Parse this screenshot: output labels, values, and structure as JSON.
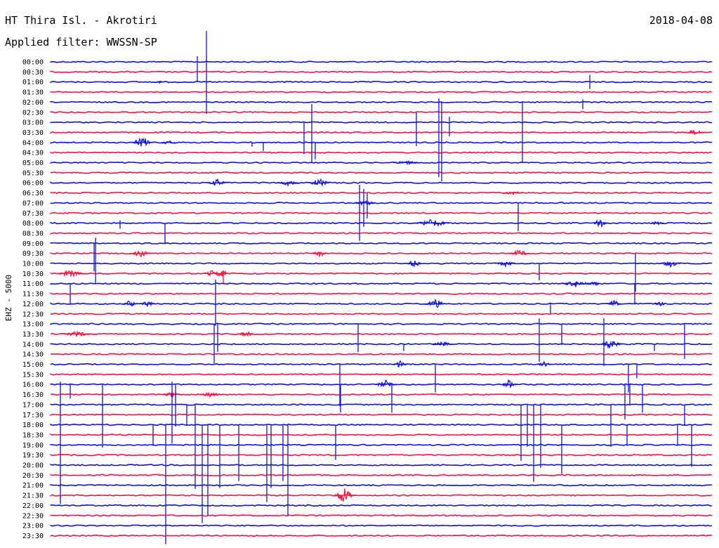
{
  "header": {
    "station": "HT Thira Isl. - Akrotiri",
    "filter": "Applied filter: WWSSN-SP",
    "date": "2018-04-08"
  },
  "colors": {
    "blue": "#1010e0",
    "red": "#ff1040"
  },
  "chart_data": {
    "type": "line",
    "title": "",
    "ylabel": "EHZ - 5000",
    "xlabel": "",
    "series_colors_alternate": [
      "blue",
      "red"
    ],
    "rows": [
      "00:00",
      "00:30",
      "01:00",
      "01:30",
      "02:00",
      "02:30",
      "03:00",
      "03:30",
      "04:00",
      "04:30",
      "05:00",
      "05:30",
      "06:00",
      "06:30",
      "07:00",
      "07:30",
      "08:00",
      "08:30",
      "09:00",
      "09:30",
      "10:00",
      "10:30",
      "11:00",
      "11:30",
      "12:00",
      "12:30",
      "13:00",
      "13:30",
      "14:00",
      "14:30",
      "15:00",
      "15:30",
      "16:00",
      "16:30",
      "17:00",
      "17:30",
      "18:00",
      "18:30",
      "19:00",
      "19:30",
      "20:00",
      "20:30",
      "21:00",
      "21:30",
      "22:00",
      "22:30",
      "23:00",
      "23:30"
    ]
  }
}
